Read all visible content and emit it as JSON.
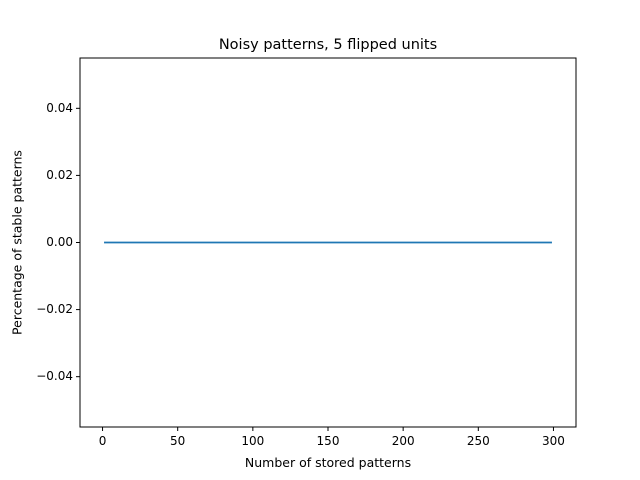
{
  "chart_data": {
    "type": "line",
    "title": "Noisy patterns, 5 flipped units",
    "xlabel": "Number of stored patterns",
    "ylabel": "Percentage of stable patterns",
    "xlim": [
      -15,
      315
    ],
    "ylim": [
      -0.055,
      0.055
    ],
    "x_ticks": [
      0,
      50,
      100,
      150,
      200,
      250,
      300
    ],
    "x_tick_labels": [
      "0",
      "50",
      "100",
      "150",
      "200",
      "250",
      "300"
    ],
    "y_ticks": [
      -0.04,
      -0.02,
      0.0,
      0.02,
      0.04
    ],
    "y_tick_labels": [
      "−0.04",
      "−0.02",
      "0.00",
      "0.02",
      "0.04"
    ],
    "grid": false,
    "series": [
      {
        "color": "#1f77b4",
        "x": [
          1,
          299
        ],
        "y": [
          0.0,
          0.0
        ]
      }
    ]
  }
}
